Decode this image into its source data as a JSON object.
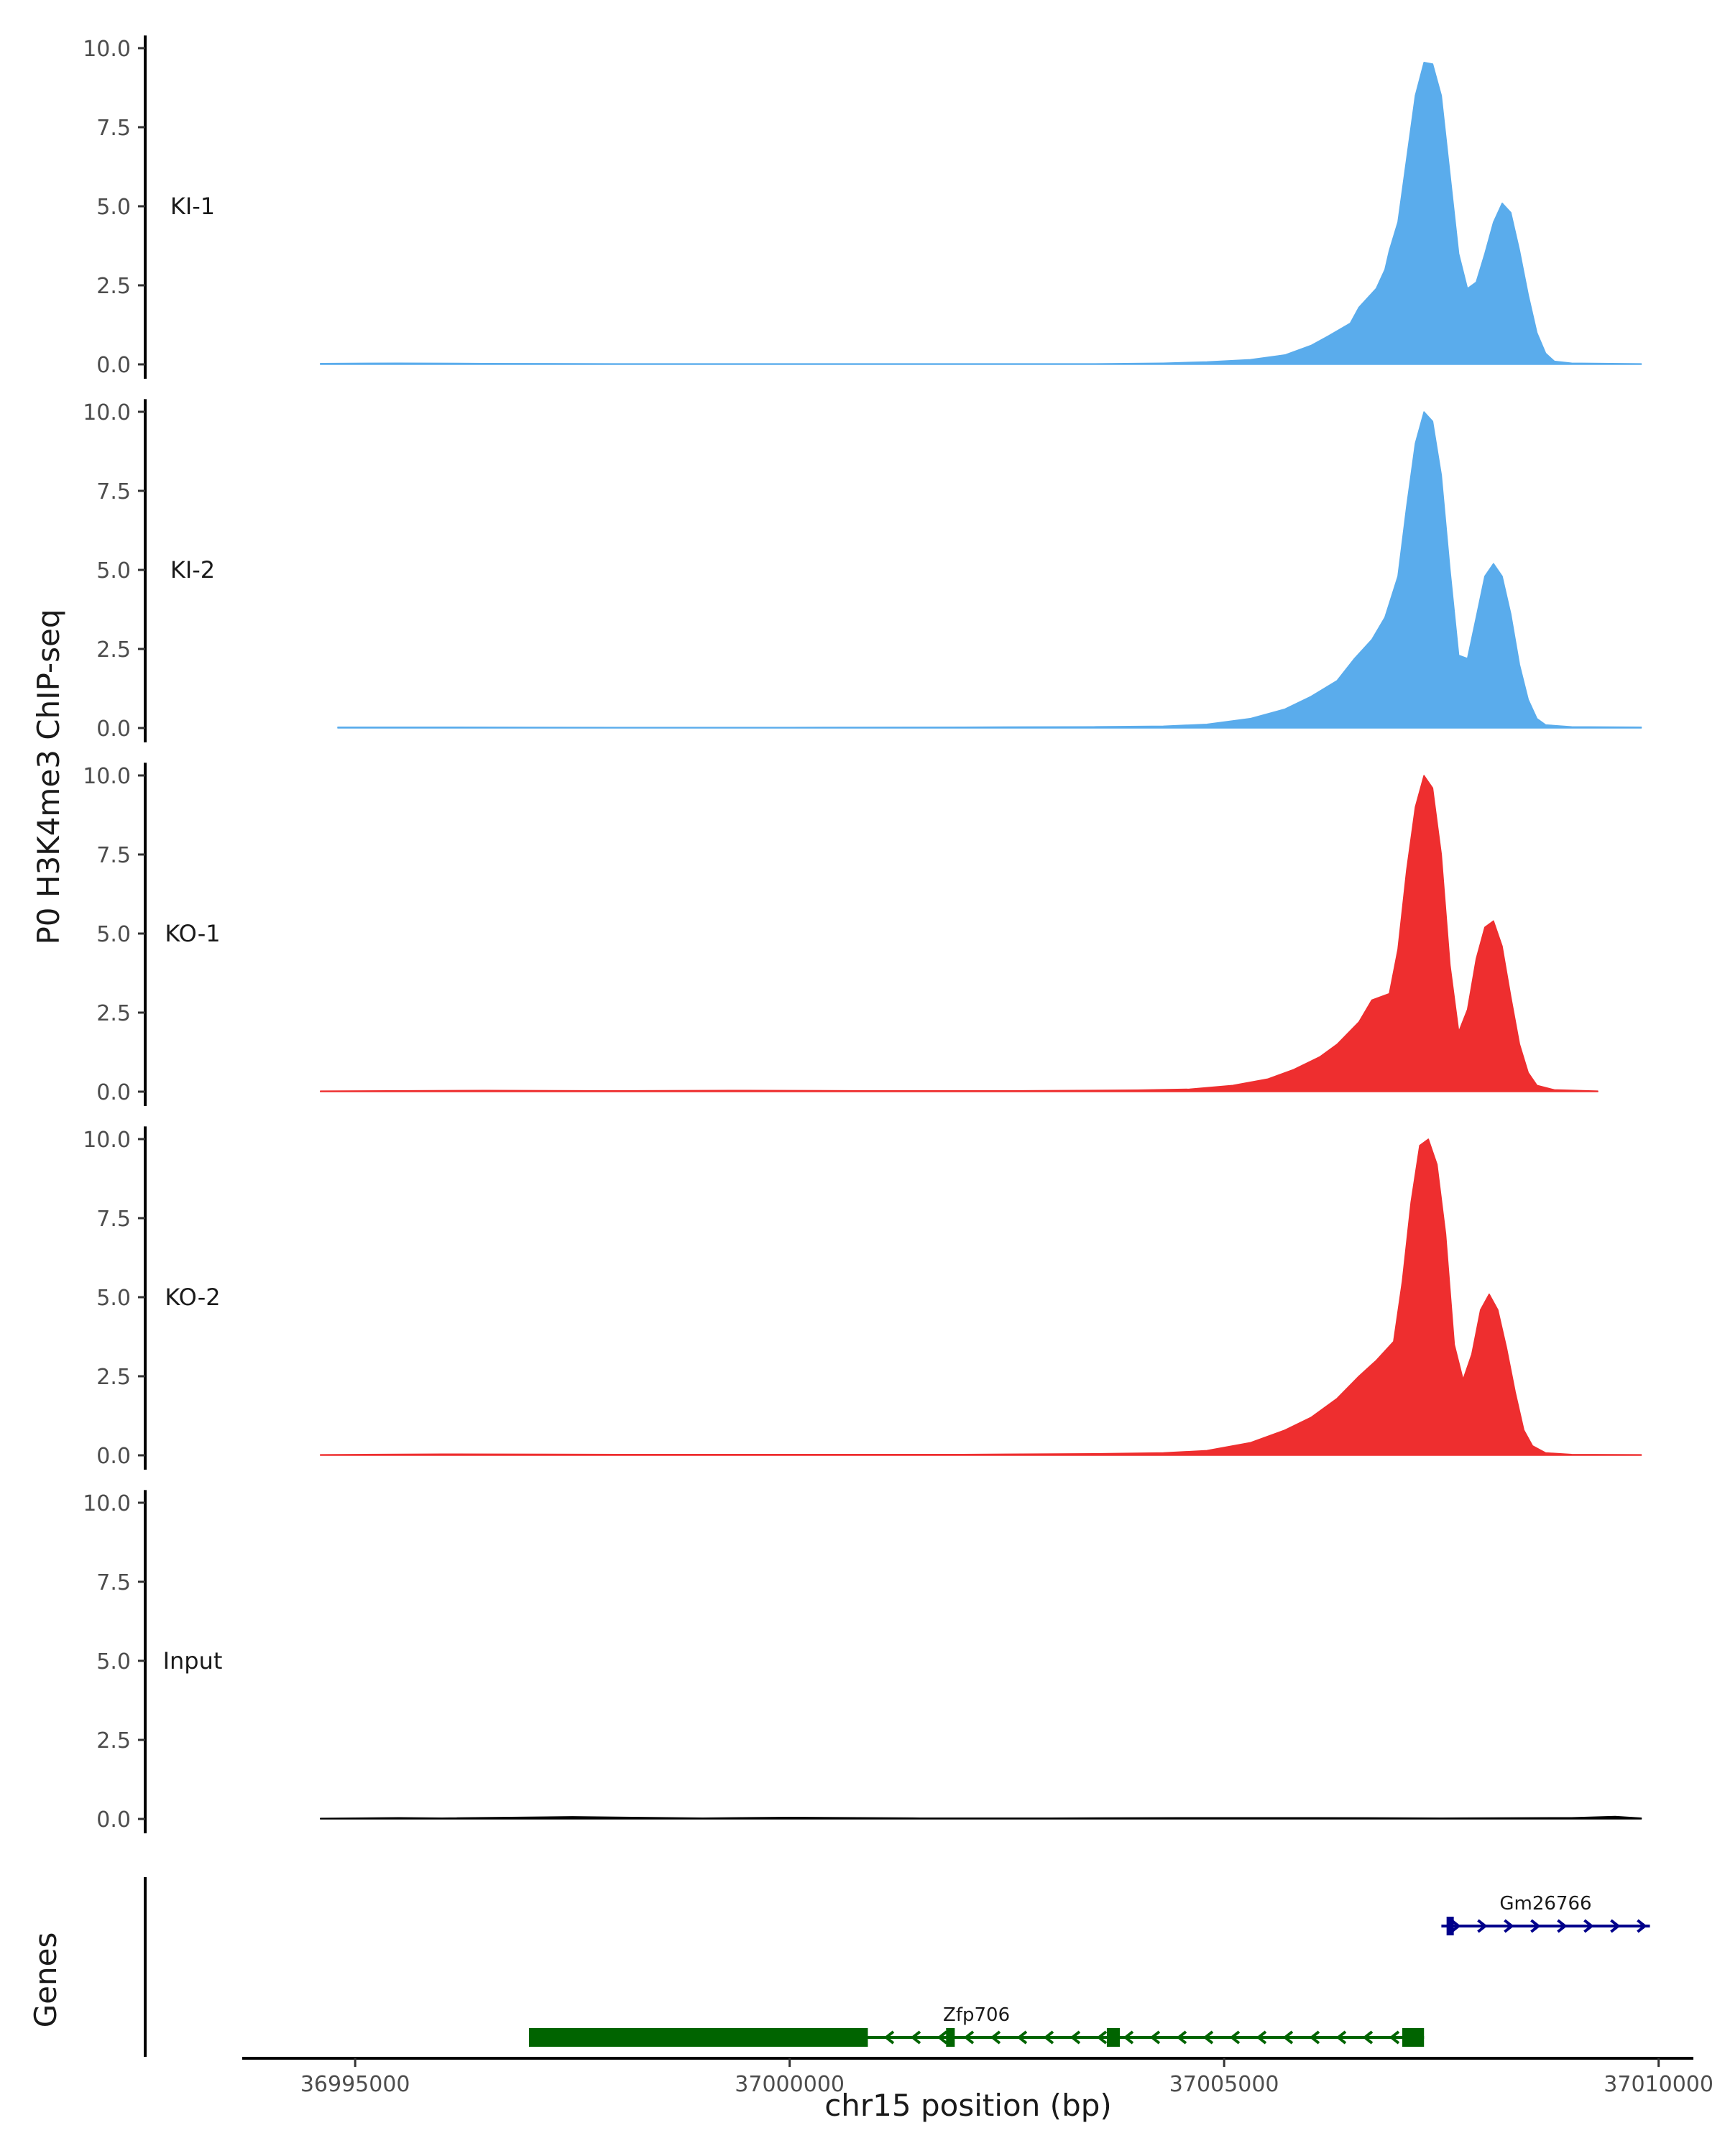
{
  "chart_data": {
    "type": "area",
    "title": "",
    "ylabel": "P0 H3K4me3 ChIP-seq",
    "xlabel": "chr15 position (bp)",
    "xlim": [
      36993700,
      37010400
    ],
    "ylim": [
      0,
      10.4
    ],
    "y_ticks": [
      0.0,
      2.5,
      5.0,
      7.5,
      10.0
    ],
    "y_tick_labels": [
      "0.0",
      "2.5",
      "5.0",
      "7.5",
      "10.0"
    ],
    "x_ticks": [
      36995000,
      37000000,
      37005000,
      37010000
    ],
    "x_tick_labels": [
      "36995000",
      "37000000",
      "37005000",
      "37010000"
    ],
    "tracks": [
      {
        "name": "KI-1",
        "color": "#5aacec",
        "x_start": 36994600,
        "x_end": 37009800,
        "points": [
          [
            36994600,
            0.03
          ],
          [
            36995500,
            0.04
          ],
          [
            36996500,
            0.03
          ],
          [
            36998000,
            0.02
          ],
          [
            37000000,
            0.02
          ],
          [
            37002000,
            0.02
          ],
          [
            37003500,
            0.02
          ],
          [
            37004300,
            0.04
          ],
          [
            37004800,
            0.08
          ],
          [
            37005300,
            0.15
          ],
          [
            37005700,
            0.3
          ],
          [
            37006000,
            0.6
          ],
          [
            37006200,
            0.9
          ],
          [
            37006450,
            1.3
          ],
          [
            37006550,
            1.8
          ],
          [
            37006750,
            2.4
          ],
          [
            37006850,
            3.0
          ],
          [
            37006900,
            3.6
          ],
          [
            37007000,
            4.5
          ],
          [
            37007100,
            6.5
          ],
          [
            37007200,
            8.5
          ],
          [
            37007300,
            9.55
          ],
          [
            37007400,
            9.5
          ],
          [
            37007500,
            8.5
          ],
          [
            37007600,
            6.0
          ],
          [
            37007700,
            3.5
          ],
          [
            37007800,
            2.4
          ],
          [
            37007900,
            2.6
          ],
          [
            37008000,
            3.5
          ],
          [
            37008100,
            4.5
          ],
          [
            37008200,
            5.1
          ],
          [
            37008300,
            4.8
          ],
          [
            37008400,
            3.6
          ],
          [
            37008500,
            2.2
          ],
          [
            37008600,
            1.0
          ],
          [
            37008700,
            0.35
          ],
          [
            37008800,
            0.1
          ],
          [
            37009000,
            0.04
          ],
          [
            37009800,
            0.02
          ]
        ]
      },
      {
        "name": "KI-2",
        "color": "#5aacec",
        "x_start": 36994800,
        "x_end": 37009800,
        "points": [
          [
            36994800,
            0.03
          ],
          [
            36996000,
            0.03
          ],
          [
            36998000,
            0.02
          ],
          [
            37000000,
            0.02
          ],
          [
            37002000,
            0.03
          ],
          [
            37003500,
            0.04
          ],
          [
            37004300,
            0.06
          ],
          [
            37004800,
            0.12
          ],
          [
            37005300,
            0.3
          ],
          [
            37005700,
            0.6
          ],
          [
            37006000,
            1.0
          ],
          [
            37006300,
            1.5
          ],
          [
            37006500,
            2.2
          ],
          [
            37006700,
            2.8
          ],
          [
            37006850,
            3.5
          ],
          [
            37007000,
            4.8
          ],
          [
            37007100,
            7.0
          ],
          [
            37007200,
            9.0
          ],
          [
            37007300,
            10.0
          ],
          [
            37007400,
            9.7
          ],
          [
            37007500,
            8.0
          ],
          [
            37007600,
            5.0
          ],
          [
            37007700,
            2.3
          ],
          [
            37007800,
            2.2
          ],
          [
            37007900,
            3.5
          ],
          [
            37008000,
            4.8
          ],
          [
            37008100,
            5.2
          ],
          [
            37008200,
            4.8
          ],
          [
            37008300,
            3.6
          ],
          [
            37008400,
            2.0
          ],
          [
            37008500,
            0.9
          ],
          [
            37008600,
            0.3
          ],
          [
            37008700,
            0.1
          ],
          [
            37009000,
            0.04
          ],
          [
            37009800,
            0.03
          ]
        ]
      },
      {
        "name": "KO-1",
        "color": "#ee2e2f",
        "x_start": 36994600,
        "x_end": 37009300,
        "points": [
          [
            36994600,
            0.02
          ],
          [
            36996500,
            0.04
          ],
          [
            36998000,
            0.03
          ],
          [
            36999500,
            0.04
          ],
          [
            37001000,
            0.03
          ],
          [
            37002500,
            0.03
          ],
          [
            37004000,
            0.05
          ],
          [
            37004600,
            0.08
          ],
          [
            37005100,
            0.2
          ],
          [
            37005500,
            0.4
          ],
          [
            37005800,
            0.7
          ],
          [
            37006100,
            1.1
          ],
          [
            37006300,
            1.5
          ],
          [
            37006550,
            2.2
          ],
          [
            37006700,
            2.9
          ],
          [
            37006900,
            3.1
          ],
          [
            37007000,
            4.5
          ],
          [
            37007100,
            7.0
          ],
          [
            37007200,
            9.0
          ],
          [
            37007300,
            10.0
          ],
          [
            37007400,
            9.6
          ],
          [
            37007500,
            7.5
          ],
          [
            37007600,
            4.0
          ],
          [
            37007700,
            1.9
          ],
          [
            37007800,
            2.6
          ],
          [
            37007900,
            4.2
          ],
          [
            37008000,
            5.2
          ],
          [
            37008100,
            5.4
          ],
          [
            37008200,
            4.6
          ],
          [
            37008300,
            3.0
          ],
          [
            37008400,
            1.5
          ],
          [
            37008500,
            0.6
          ],
          [
            37008600,
            0.2
          ],
          [
            37008800,
            0.06
          ],
          [
            37009300,
            0.02
          ]
        ]
      },
      {
        "name": "KO-2",
        "color": "#ee2e2f",
        "x_start": 36994600,
        "x_end": 37009800,
        "points": [
          [
            36994600,
            0.02
          ],
          [
            36996000,
            0.04
          ],
          [
            36998000,
            0.03
          ],
          [
            37000000,
            0.03
          ],
          [
            37002000,
            0.03
          ],
          [
            37003500,
            0.05
          ],
          [
            37004300,
            0.08
          ],
          [
            37004800,
            0.15
          ],
          [
            37005300,
            0.4
          ],
          [
            37005700,
            0.8
          ],
          [
            37006000,
            1.2
          ],
          [
            37006300,
            1.8
          ],
          [
            37006550,
            2.5
          ],
          [
            37006750,
            3.0
          ],
          [
            37006950,
            3.6
          ],
          [
            37007050,
            5.5
          ],
          [
            37007150,
            8.0
          ],
          [
            37007250,
            9.8
          ],
          [
            37007350,
            10.0
          ],
          [
            37007450,
            9.2
          ],
          [
            37007550,
            7.0
          ],
          [
            37007650,
            3.5
          ],
          [
            37007750,
            2.4
          ],
          [
            37007850,
            3.2
          ],
          [
            37007950,
            4.6
          ],
          [
            37008050,
            5.1
          ],
          [
            37008150,
            4.6
          ],
          [
            37008250,
            3.4
          ],
          [
            37008350,
            2.0
          ],
          [
            37008450,
            0.8
          ],
          [
            37008550,
            0.3
          ],
          [
            37008700,
            0.08
          ],
          [
            37009000,
            0.03
          ],
          [
            37009800,
            0.02
          ]
        ]
      },
      {
        "name": "Input",
        "color": "#000000",
        "x_start": 36994600,
        "x_end": 37009800,
        "points": [
          [
            36994600,
            0.02
          ],
          [
            36995500,
            0.04
          ],
          [
            36996000,
            0.03
          ],
          [
            36997500,
            0.07
          ],
          [
            36999000,
            0.03
          ],
          [
            37000000,
            0.05
          ],
          [
            37001500,
            0.03
          ],
          [
            37003000,
            0.03
          ],
          [
            37004500,
            0.04
          ],
          [
            37006000,
            0.04
          ],
          [
            37007500,
            0.03
          ],
          [
            37009000,
            0.04
          ],
          [
            37009500,
            0.08
          ],
          [
            37009800,
            0.03
          ]
        ]
      }
    ],
    "genes_track_title": "Genes",
    "genes": [
      {
        "name": "Zfp706",
        "strand": "-",
        "color": "#006400",
        "start": 36997000,
        "end": 37007300,
        "exons": [
          [
            36997000,
            37000900
          ],
          [
            37001800,
            37001900
          ],
          [
            37003650,
            37003800
          ],
          [
            37007050,
            37007300
          ]
        ]
      },
      {
        "name": "Gm26766",
        "strand": "+",
        "color": "#00008b",
        "start": 37007500,
        "end": 37009900,
        "exons": [
          [
            37007560,
            37007640
          ]
        ]
      }
    ]
  }
}
